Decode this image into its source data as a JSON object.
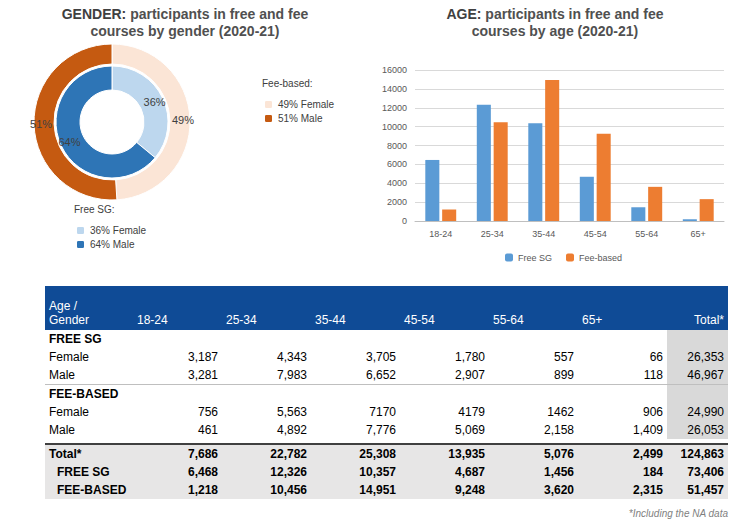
{
  "chart_data": [
    {
      "type": "pie",
      "title": "GENDER: participants in free and fee courses by gender (2020-21)",
      "data_labels": true,
      "series": [
        {
          "name": "Free SG:",
          "labels": [
            "36% Female",
            "64% Male"
          ],
          "values": [
            36,
            64
          ],
          "value_labels": [
            "36%",
            "64%"
          ],
          "colors": [
            "#bdd7ee",
            "#2e75b6"
          ]
        },
        {
          "name": "Fee-based:",
          "labels": [
            "49% Female",
            "51% Male"
          ],
          "values": [
            49,
            51
          ],
          "value_labels": [
            "49%",
            "51%"
          ],
          "colors": [
            "#fbe5d6",
            "#c55a11"
          ]
        }
      ]
    },
    {
      "type": "bar",
      "title": "AGE: participants in free and fee courses by age (2020-21)",
      "categories": [
        "18-24",
        "25-34",
        "35-44",
        "45-54",
        "55-64",
        "65+"
      ],
      "series": [
        {
          "name": "Free SG",
          "color": "#5b9bd5",
          "values": [
            6468,
            12326,
            10357,
            4687,
            1456,
            184
          ]
        },
        {
          "name": "Fee-based",
          "color": "#ed7d31",
          "values": [
            1218,
            10456,
            14951,
            9248,
            3620,
            2315
          ]
        }
      ],
      "ylim": [
        0,
        16000
      ],
      "yticks": [
        0,
        2000,
        4000,
        6000,
        8000,
        10000,
        12000,
        14000,
        16000
      ],
      "grid": true,
      "legend": "bottom"
    }
  ],
  "table": {
    "corner": [
      "Age /",
      "Gender"
    ],
    "columns": [
      "18-24",
      "25-34",
      "35-44",
      "45-54",
      "55-64",
      "65+",
      "Total*"
    ],
    "groups": [
      {
        "title": "FREE SG",
        "rows": [
          [
            "Female",
            "3,187",
            "4,343",
            "3,705",
            "1,780",
            "557",
            "66",
            "26,353"
          ],
          [
            "Male",
            "3,281",
            "7,983",
            "6,652",
            "2,907",
            "899",
            "118",
            "46,967"
          ]
        ]
      },
      {
        "title": "FEE-BASED",
        "rows": [
          [
            "Female",
            "756",
            "5,563",
            "7170",
            "4179",
            "1462",
            "906",
            "24,990"
          ],
          [
            "Male",
            "461",
            "4,892",
            "7,776",
            "5,069",
            "2,158",
            "1,409",
            "26,053"
          ]
        ]
      }
    ],
    "totals": [
      [
        "Total*",
        "7,686",
        "22,782",
        "25,308",
        "13,935",
        "5,076",
        "2,499",
        "124,863"
      ],
      [
        "FREE SG",
        "6,468",
        "12,326",
        "10,357",
        "4,687",
        "1,456",
        "184",
        "73,406"
      ],
      [
        "FEE-BASED",
        "1,218",
        "10,456",
        "14,951",
        "9,248",
        "3,620",
        "2,315",
        "51,457"
      ]
    ]
  },
  "footnote": "*Including the NA data"
}
